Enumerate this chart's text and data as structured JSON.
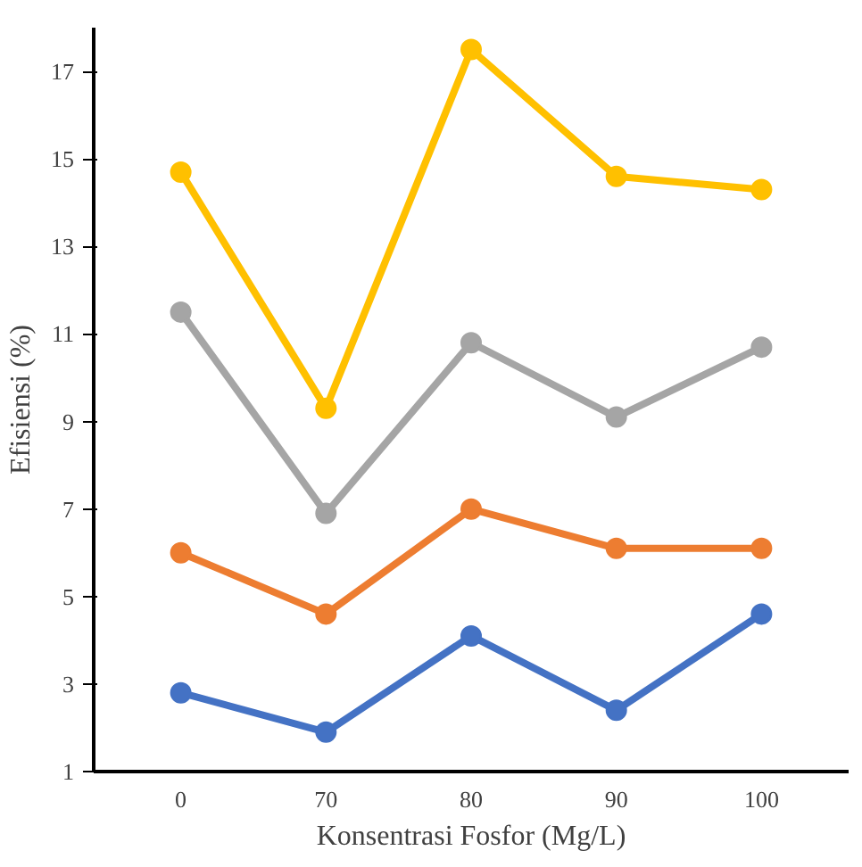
{
  "chart_data": {
    "type": "line",
    "xlabel": "Konsentrasi Fosfor (Mg/L)",
    "ylabel": "Efisiensi (%)",
    "categories": [
      "0",
      "70",
      "80",
      "90",
      "100"
    ],
    "ylim": [
      1,
      18
    ],
    "yticks": [
      1,
      3,
      5,
      7,
      9,
      11,
      13,
      15,
      17
    ],
    "grid": false,
    "marker": "circle",
    "line_style": "solid",
    "series": [
      {
        "color": "#ffc000",
        "values": [
          14.7,
          9.3,
          17.5,
          14.6,
          14.3
        ]
      },
      {
        "color": "#a5a5a5",
        "values": [
          11.5,
          6.9,
          10.8,
          9.1,
          10.7
        ]
      },
      {
        "color": "#ed7d31",
        "values": [
          6.0,
          4.6,
          7.0,
          6.1,
          6.1
        ]
      },
      {
        "color": "#4472c4",
        "values": [
          2.8,
          1.9,
          4.1,
          2.4,
          4.6
        ]
      }
    ]
  }
}
